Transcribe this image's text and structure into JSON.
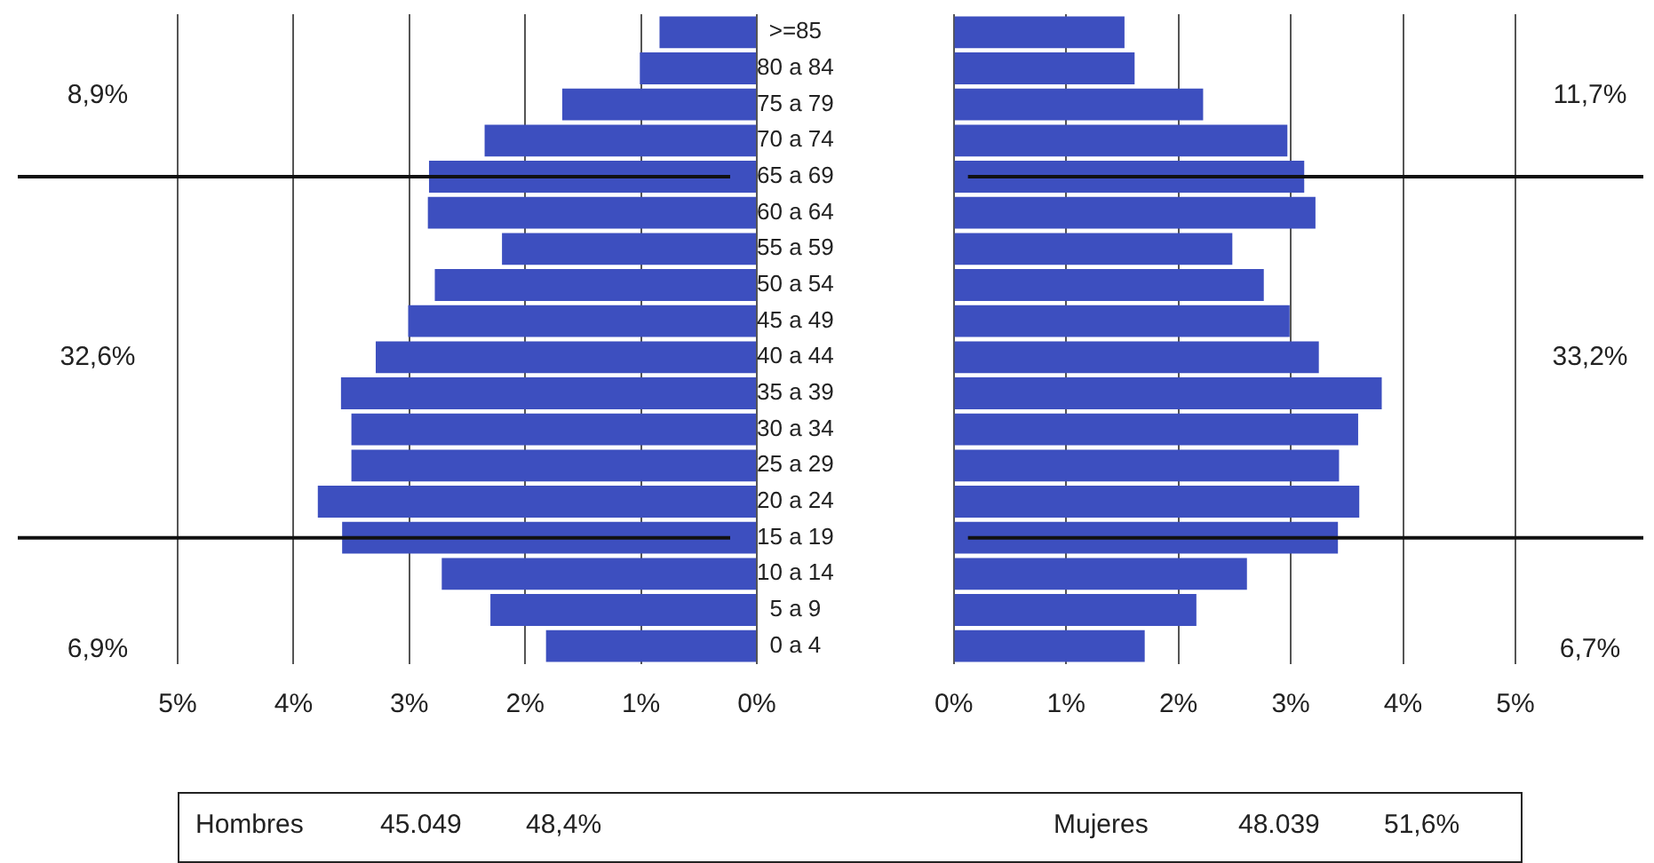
{
  "chart_data": [
    {
      "type": "bar",
      "orientation": "horizontal",
      "categories": [
        ">=85",
        "80 a 84",
        "75 a 79",
        "70 a 74",
        "65 a 69",
        "60 a 64",
        "55 a 59",
        "50 a 54",
        "45 a 49",
        "40 a 44",
        "35 a 39",
        "30 a 34",
        "25 a 29",
        "20 a 24",
        "15 a 19",
        "10 a 14",
        "5 a 9",
        "0 a 4"
      ],
      "values": [
        0.84,
        1.01,
        1.68,
        2.35,
        2.83,
        2.84,
        2.2,
        2.78,
        3.01,
        3.29,
        3.59,
        3.5,
        3.5,
        3.79,
        3.58,
        2.72,
        2.3,
        1.82
      ],
      "color": "#3d4fbf",
      "xlim": [
        5,
        0
      ],
      "xticks": [
        {
          "value": 5,
          "label": "5%"
        },
        {
          "value": 4,
          "label": "4%"
        },
        {
          "value": 3,
          "label": "3%"
        },
        {
          "value": 2,
          "label": "2%"
        },
        {
          "value": 1,
          "label": "1%"
        },
        {
          "value": 0,
          "label": "0%"
        }
      ],
      "grid": "x",
      "ref_lines": [
        {
          "axis": "y",
          "value": "65 a 69"
        },
        {
          "axis": "y",
          "value": "15 a 19"
        }
      ],
      "annotations": [
        "8,9%",
        "32,6%",
        "6,9%",
        "Hombres",
        "45.049",
        "48,4%"
      ]
    },
    {
      "type": "bar",
      "orientation": "horizontal",
      "categories": [
        ">=85",
        "80 a 84",
        "75 a 79",
        "70 a 74",
        "65 a 69",
        "60 a 64",
        "55 a 59",
        "50 a 54",
        "45 a 49",
        "40 a 44",
        "35 a 39",
        "30 a 34",
        "25 a 29",
        "20 a 24",
        "15 a 19",
        "10 a 14",
        "5 a 9",
        "0 a 4"
      ],
      "values": [
        1.52,
        1.61,
        2.22,
        2.97,
        3.12,
        3.22,
        2.48,
        2.76,
        2.99,
        3.25,
        3.81,
        3.6,
        3.43,
        3.61,
        3.42,
        2.61,
        2.16,
        1.7
      ],
      "color": "#3d4fbf",
      "xlim": [
        0,
        5
      ],
      "xticks": [
        {
          "value": 0,
          "label": "0%"
        },
        {
          "value": 1,
          "label": "1%"
        },
        {
          "value": 2,
          "label": "2%"
        },
        {
          "value": 3,
          "label": "3%"
        },
        {
          "value": 4,
          "label": "4%"
        },
        {
          "value": 5,
          "label": "5%"
        }
      ],
      "grid": "x",
      "tick_labels": "x",
      "ref_lines": [
        {
          "axis": "y",
          "value": "65 a 69"
        },
        {
          "axis": "y",
          "value": "15 a 19"
        }
      ],
      "annotations": [
        "11,7%",
        "33,2%",
        "6,7%",
        "Mujeres",
        "48.039",
        "51,6%"
      ]
    }
  ]
}
